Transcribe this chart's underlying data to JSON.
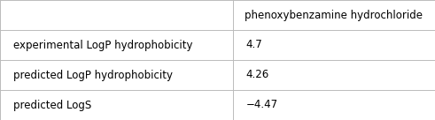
{
  "col_header": "phenoxybenzamine hydrochloride",
  "rows": [
    {
      "label": "experimental LogP hydrophobicity",
      "value": "4.7"
    },
    {
      "label": "predicted LogP hydrophobicity",
      "value": "4.26"
    },
    {
      "label": "predicted LogS",
      "value": "−4.47"
    }
  ],
  "col_split": 0.535,
  "background_color": "#ffffff",
  "border_color": "#bbbbbb",
  "text_color": "#000000",
  "font_size": 8.5,
  "header_font_size": 8.5
}
